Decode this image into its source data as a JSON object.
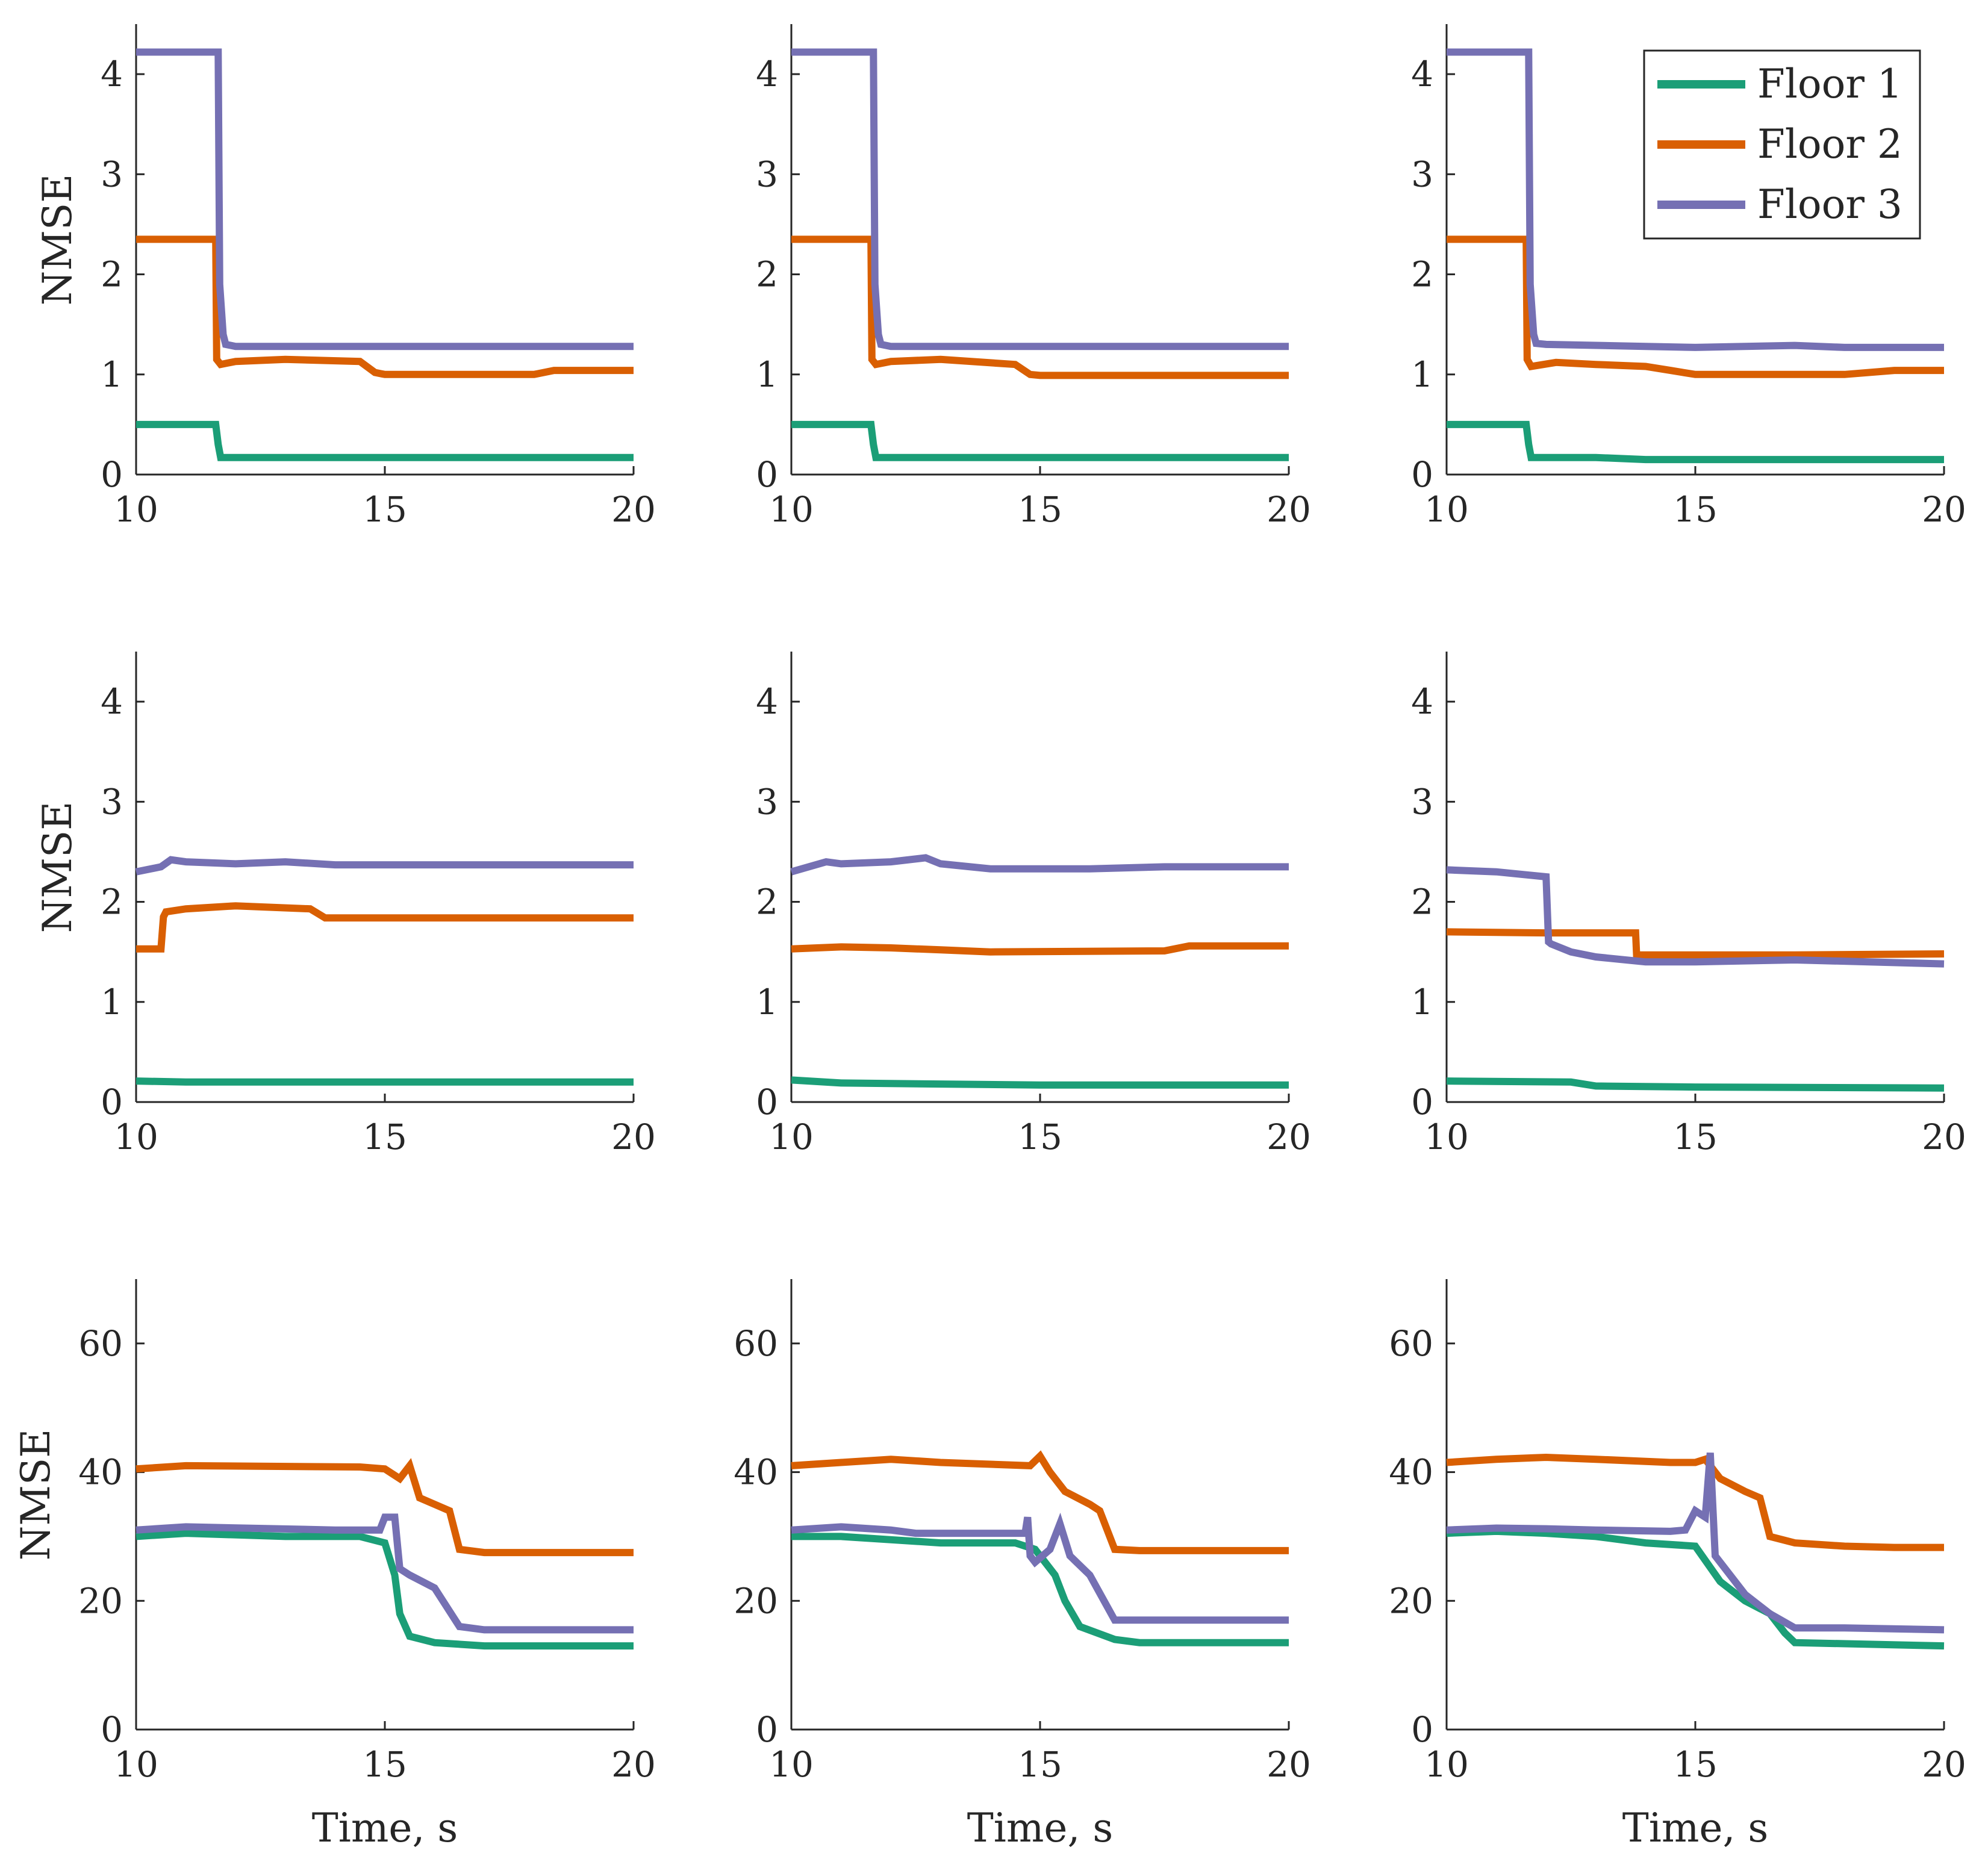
{
  "figure": {
    "x_label": "Time, s",
    "y_label": "NMSE",
    "legend": {
      "placement": "top-right of top-right panel",
      "entries": [
        {
          "name": "Floor 1",
          "color": "#1b9e77"
        },
        {
          "name": "Floor 2",
          "color": "#d95f02"
        },
        {
          "name": "Floor 3",
          "color": "#7570b3"
        }
      ]
    }
  },
  "chart_data": [
    {
      "type": "line",
      "row": 0,
      "col": 0,
      "xlim": [
        10,
        20
      ],
      "ylim": [
        0,
        4.5
      ],
      "xticks": [
        10,
        15,
        20
      ],
      "yticks": [
        0,
        1,
        2,
        3,
        4
      ],
      "ylabel": "NMSE",
      "xlabel": "",
      "series": [
        {
          "name": "Floor 1",
          "x": [
            10,
            11.6,
            11.65,
            11.7,
            20
          ],
          "y": [
            0.5,
            0.5,
            0.3,
            0.17,
            0.17
          ]
        },
        {
          "name": "Floor 2",
          "x": [
            10,
            11.6,
            11.62,
            11.7,
            12,
            13,
            14.5,
            14.8,
            15,
            18,
            18.4,
            20
          ],
          "y": [
            2.35,
            2.35,
            1.15,
            1.1,
            1.13,
            1.15,
            1.13,
            1.02,
            1.0,
            1.0,
            1.04,
            1.04
          ]
        },
        {
          "name": "Floor 3",
          "x": [
            10,
            11.65,
            11.68,
            11.75,
            11.8,
            12,
            20
          ],
          "y": [
            4.22,
            4.22,
            1.9,
            1.4,
            1.3,
            1.28,
            1.28
          ]
        }
      ]
    },
    {
      "type": "line",
      "row": 0,
      "col": 1,
      "xlim": [
        10,
        20
      ],
      "ylim": [
        0,
        4.5
      ],
      "xticks": [
        10,
        15,
        20
      ],
      "yticks": [
        0,
        1,
        2,
        3,
        4
      ],
      "ylabel": "",
      "xlabel": "",
      "series": [
        {
          "name": "Floor 1",
          "x": [
            10,
            11.6,
            11.65,
            11.7,
            20
          ],
          "y": [
            0.5,
            0.5,
            0.3,
            0.17,
            0.17
          ]
        },
        {
          "name": "Floor 2",
          "x": [
            10,
            11.6,
            11.62,
            11.7,
            12,
            13,
            14.5,
            14.8,
            15,
            20
          ],
          "y": [
            2.35,
            2.35,
            1.15,
            1.1,
            1.13,
            1.15,
            1.1,
            1.0,
            0.99,
            0.99
          ]
        },
        {
          "name": "Floor 3",
          "x": [
            10,
            11.65,
            11.68,
            11.75,
            11.8,
            12,
            20
          ],
          "y": [
            4.22,
            4.22,
            1.9,
            1.4,
            1.3,
            1.28,
            1.28
          ]
        }
      ]
    },
    {
      "type": "line",
      "row": 0,
      "col": 2,
      "xlim": [
        10,
        20
      ],
      "ylim": [
        0,
        4.5
      ],
      "xticks": [
        10,
        15,
        20
      ],
      "yticks": [
        0,
        1,
        2,
        3,
        4
      ],
      "ylabel": "",
      "xlabel": "",
      "series": [
        {
          "name": "Floor 1",
          "x": [
            10,
            11.6,
            11.65,
            11.7,
            13,
            14,
            18,
            20
          ],
          "y": [
            0.5,
            0.5,
            0.3,
            0.17,
            0.17,
            0.15,
            0.15,
            0.15
          ]
        },
        {
          "name": "Floor 2",
          "x": [
            10,
            11.6,
            11.62,
            11.7,
            12.2,
            13,
            14,
            14.5,
            15,
            18,
            19,
            20
          ],
          "y": [
            2.35,
            2.35,
            1.15,
            1.08,
            1.12,
            1.1,
            1.08,
            1.04,
            1.0,
            1.0,
            1.04,
            1.04
          ]
        },
        {
          "name": "Floor 3",
          "x": [
            10,
            11.65,
            11.68,
            11.75,
            11.8,
            12,
            14,
            15,
            17,
            18,
            20
          ],
          "y": [
            4.22,
            4.22,
            1.9,
            1.4,
            1.31,
            1.3,
            1.28,
            1.27,
            1.29,
            1.27,
            1.27
          ]
        }
      ]
    },
    {
      "type": "line",
      "row": 1,
      "col": 0,
      "xlim": [
        10,
        20
      ],
      "ylim": [
        0,
        4.5
      ],
      "xticks": [
        10,
        15,
        20
      ],
      "yticks": [
        0,
        1,
        2,
        3,
        4
      ],
      "ylabel": "NMSE",
      "xlabel": "",
      "series": [
        {
          "name": "Floor 1",
          "x": [
            10,
            11,
            20
          ],
          "y": [
            0.21,
            0.2,
            0.2
          ]
        },
        {
          "name": "Floor 2",
          "x": [
            10,
            10.5,
            10.55,
            10.6,
            11,
            12,
            13.5,
            13.8,
            15,
            20
          ],
          "y": [
            1.53,
            1.53,
            1.85,
            1.9,
            1.93,
            1.96,
            1.93,
            1.84,
            1.84,
            1.84
          ]
        },
        {
          "name": "Floor 3",
          "x": [
            10,
            10.5,
            10.7,
            11,
            12,
            13,
            14,
            20
          ],
          "y": [
            2.3,
            2.35,
            2.42,
            2.4,
            2.38,
            2.4,
            2.37,
            2.37
          ]
        }
      ]
    },
    {
      "type": "line",
      "row": 1,
      "col": 1,
      "xlim": [
        10,
        20
      ],
      "ylim": [
        0,
        4.5
      ],
      "xticks": [
        10,
        15,
        20
      ],
      "yticks": [
        0,
        1,
        2,
        3,
        4
      ],
      "ylabel": "",
      "xlabel": "",
      "series": [
        {
          "name": "Floor 1",
          "x": [
            10,
            11,
            13,
            15,
            20
          ],
          "y": [
            0.22,
            0.19,
            0.18,
            0.17,
            0.17
          ]
        },
        {
          "name": "Floor 2",
          "x": [
            10,
            11,
            12,
            13,
            14,
            17.5,
            18,
            20
          ],
          "y": [
            1.53,
            1.55,
            1.54,
            1.52,
            1.5,
            1.51,
            1.56,
            1.56
          ]
        },
        {
          "name": "Floor 3",
          "x": [
            10,
            10.7,
            11,
            12,
            12.7,
            13,
            14,
            16,
            17.5,
            20
          ],
          "y": [
            2.3,
            2.4,
            2.38,
            2.4,
            2.44,
            2.38,
            2.33,
            2.33,
            2.35,
            2.35
          ]
        }
      ]
    },
    {
      "type": "line",
      "row": 1,
      "col": 2,
      "xlim": [
        10,
        20
      ],
      "ylim": [
        0,
        4.5
      ],
      "xticks": [
        10,
        15,
        20
      ],
      "yticks": [
        0,
        1,
        2,
        3,
        4
      ],
      "ylabel": "",
      "xlabel": "",
      "series": [
        {
          "name": "Floor 1",
          "x": [
            10,
            12.5,
            13,
            15,
            20
          ],
          "y": [
            0.21,
            0.2,
            0.16,
            0.15,
            0.14
          ]
        },
        {
          "name": "Floor 2",
          "x": [
            10,
            12,
            13.8,
            13.82,
            15,
            17,
            20
          ],
          "y": [
            1.7,
            1.69,
            1.69,
            1.47,
            1.47,
            1.47,
            1.48
          ]
        },
        {
          "name": "Floor 3",
          "x": [
            10,
            11,
            12,
            12.05,
            12.1,
            12.5,
            13,
            14,
            15,
            17,
            20
          ],
          "y": [
            2.32,
            2.3,
            2.25,
            1.6,
            1.58,
            1.5,
            1.45,
            1.4,
            1.4,
            1.42,
            1.38
          ]
        }
      ]
    },
    {
      "type": "line",
      "row": 2,
      "col": 0,
      "xlim": [
        10,
        20
      ],
      "ylim": [
        0,
        70
      ],
      "xticks": [
        10,
        15,
        20
      ],
      "yticks": [
        0,
        20,
        40,
        60
      ],
      "ylabel": "NMSE",
      "xlabel": "Time, s",
      "series": [
        {
          "name": "Floor 1",
          "x": [
            10,
            11,
            13,
            14.5,
            15,
            15.2,
            15.3,
            15.5,
            16,
            17,
            20
          ],
          "y": [
            30,
            30.5,
            30,
            30,
            29,
            24,
            18,
            14.5,
            13.5,
            13,
            13
          ]
        },
        {
          "name": "Floor 2",
          "x": [
            10,
            11,
            14.5,
            15,
            15.3,
            15.5,
            15.7,
            16,
            16.3,
            16.5,
            17,
            20
          ],
          "y": [
            40.5,
            41,
            40.8,
            40.5,
            39,
            41,
            36,
            35,
            34,
            28,
            27.5,
            27.5
          ]
        },
        {
          "name": "Floor 3",
          "x": [
            10,
            11,
            14,
            14.9,
            15,
            15.2,
            15.3,
            15.5,
            16,
            16.5,
            17,
            20
          ],
          "y": [
            31,
            31.5,
            31,
            31,
            33,
            33,
            25,
            24,
            22,
            16,
            15.5,
            15.5
          ]
        }
      ]
    },
    {
      "type": "line",
      "row": 2,
      "col": 1,
      "xlim": [
        10,
        20
      ],
      "ylim": [
        0,
        70
      ],
      "xticks": [
        10,
        15,
        20
      ],
      "yticks": [
        0,
        20,
        40,
        60
      ],
      "ylabel": "",
      "xlabel": "Time, s",
      "series": [
        {
          "name": "Floor 1",
          "x": [
            10,
            11,
            12,
            13,
            14.5,
            14.9,
            15.1,
            15.3,
            15.5,
            15.8,
            16.5,
            17,
            20
          ],
          "y": [
            30,
            30,
            29.5,
            29,
            29,
            28,
            26,
            24,
            20,
            16,
            14,
            13.5,
            13.5
          ]
        },
        {
          "name": "Floor 2",
          "x": [
            10,
            11,
            12,
            13,
            14.8,
            15,
            15.2,
            15.5,
            16,
            16.2,
            16.5,
            17,
            20
          ],
          "y": [
            41,
            41.5,
            42,
            41.5,
            41,
            42.5,
            40,
            37,
            35,
            34,
            28,
            27.8,
            27.8
          ]
        },
        {
          "name": "Floor 3",
          "x": [
            10,
            11,
            12,
            12.5,
            14.7,
            14.75,
            14.8,
            14.9,
            15.2,
            15.4,
            15.6,
            16,
            16.5,
            17,
            20
          ],
          "y": [
            31,
            31.5,
            31,
            30.5,
            30.5,
            33,
            27,
            26,
            28,
            32,
            27,
            24,
            17,
            17,
            17
          ]
        }
      ]
    },
    {
      "type": "line",
      "row": 2,
      "col": 2,
      "xlim": [
        10,
        20
      ],
      "ylim": [
        0,
        70
      ],
      "xticks": [
        10,
        15,
        20
      ],
      "yticks": [
        0,
        20,
        40,
        60
      ],
      "ylabel": "",
      "xlabel": "Time, s",
      "series": [
        {
          "name": "Floor 1",
          "x": [
            10,
            11,
            12,
            13,
            14,
            15,
            15.5,
            16,
            16.5,
            16.8,
            17,
            20
          ],
          "y": [
            30.5,
            30.8,
            30.5,
            30,
            29,
            28.5,
            23,
            20,
            18,
            15,
            13.5,
            13
          ]
        },
        {
          "name": "Floor 2",
          "x": [
            10,
            11,
            12,
            13,
            14.5,
            15,
            15.2,
            15.5,
            16,
            16.3,
            16.5,
            17,
            18,
            19,
            20
          ],
          "y": [
            41.5,
            42,
            42.3,
            42,
            41.5,
            41.5,
            42,
            39,
            37,
            36,
            30,
            29,
            28.5,
            28.3,
            28.3
          ]
        },
        {
          "name": "Floor 3",
          "x": [
            10,
            11,
            12,
            13,
            14.5,
            14.8,
            15,
            15.2,
            15.3,
            15.4,
            15.6,
            16,
            16.5,
            17,
            18,
            20
          ],
          "y": [
            31,
            31.3,
            31.2,
            31,
            30.8,
            31,
            34,
            33,
            43,
            27,
            25,
            21,
            18,
            15.8,
            15.8,
            15.5
          ]
        }
      ]
    }
  ]
}
